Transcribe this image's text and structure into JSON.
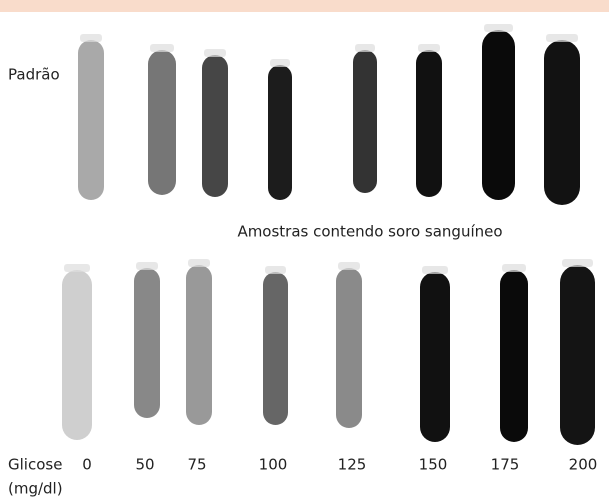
{
  "row_labels": {
    "standard": "Padrão",
    "samples": "Amostras contendo soro sanguíneo"
  },
  "axis": {
    "title": "Glicose",
    "unit": "(mg/dl)",
    "values": [
      0,
      50,
      75,
      100,
      125,
      150,
      175,
      200
    ]
  }
}
